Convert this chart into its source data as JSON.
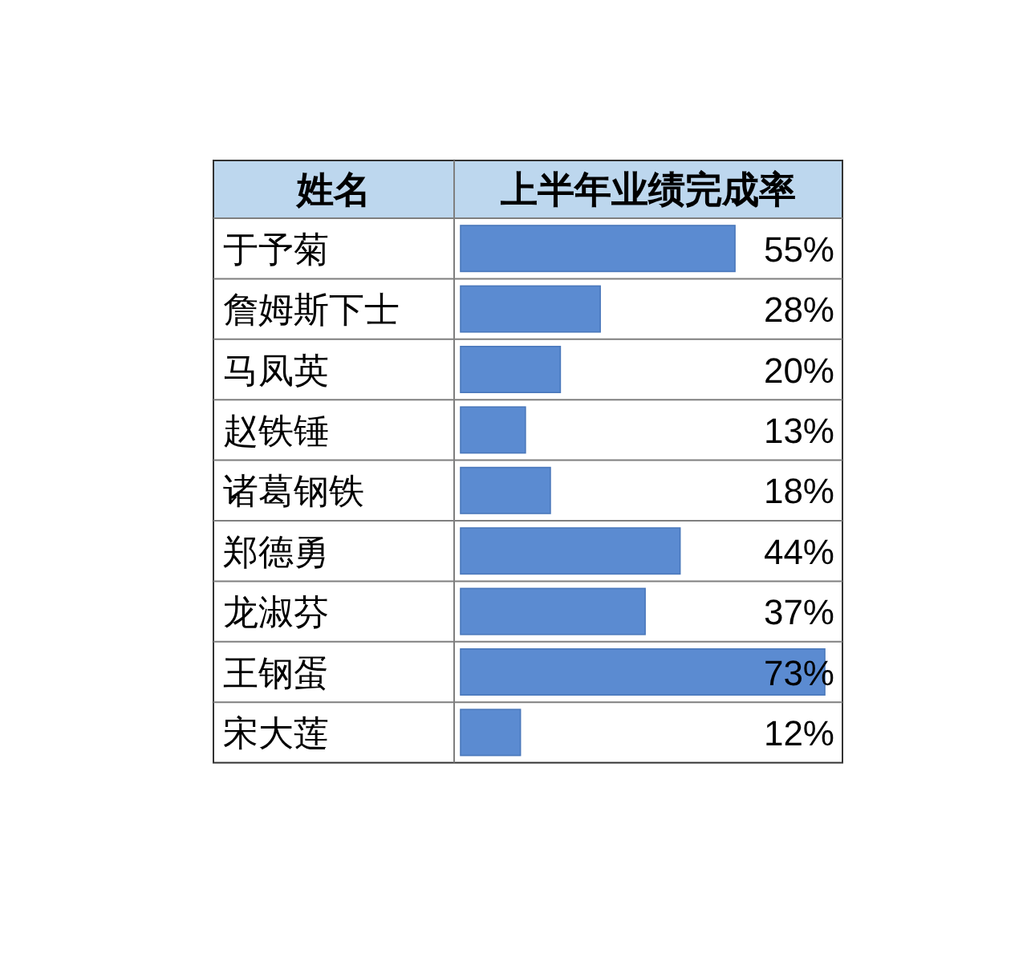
{
  "chart_data": {
    "type": "bar",
    "orientation": "horizontal",
    "ylabel": "姓名",
    "xlabel": "上半年业绩完成率",
    "categories": [
      "于予菊",
      "詹姆斯下士",
      "马凤英",
      "赵铁锤",
      "诸葛钢铁",
      "郑德勇",
      "龙淑芬",
      "王钢蛋",
      "宋大莲"
    ],
    "values": [
      55,
      28,
      20,
      13,
      18,
      44,
      37,
      73,
      12
    ],
    "value_labels": [
      "55%",
      "28%",
      "20%",
      "13%",
      "18%",
      "44%",
      "37%",
      "73%",
      "12%"
    ],
    "color": "#5b8bd1"
  }
}
